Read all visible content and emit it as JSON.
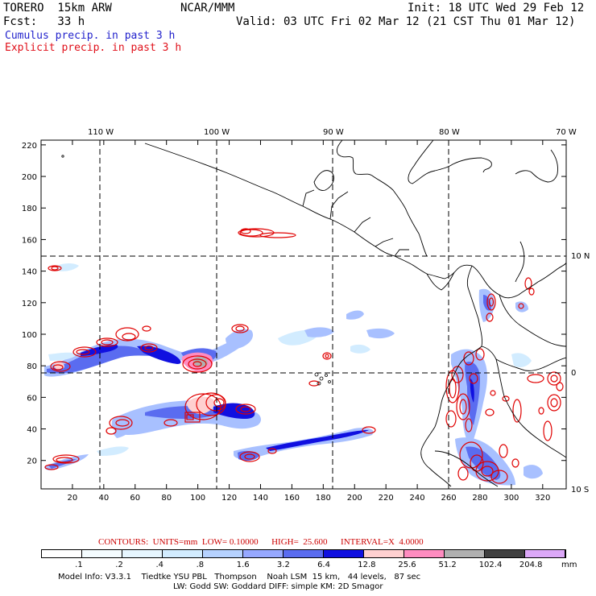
{
  "header": {
    "model": "TORERO  15km ARW",
    "org": "NCAR/MMM",
    "init": "Init: 18 UTC Wed 29 Feb 12",
    "fcst": "Fcst:   33 h",
    "valid": "Valid: 03 UTC Fri 02 Mar 12 (21 CST Thu 01 Mar 12)",
    "legend_cumulus": "Cumulus precip. in past 3 h",
    "legend_explicit": "Explicit precip. in past 3 h"
  },
  "map": {
    "lon_labels": [
      "110 W",
      "100 W",
      "90 W",
      "80 W",
      "70 W"
    ],
    "lat_labels": [
      "10 N",
      "0",
      "10 S"
    ],
    "x_ticks": [
      "20",
      "40",
      "60",
      "80",
      "100",
      "120",
      "140",
      "160",
      "180",
      "200",
      "220",
      "240",
      "260",
      "280",
      "300",
      "320"
    ],
    "y_ticks": [
      "20",
      "40",
      "60",
      "80",
      "100",
      "120",
      "140",
      "160",
      "180",
      "200",
      "220"
    ],
    "x_range": [
      0,
      335
    ],
    "y_range": [
      2,
      223
    ],
    "colors": {
      "cumulus_light": "#a8c0ff",
      "cumulus_mid": "#5a6cf0",
      "cumulus_dark": "#1010e0",
      "explicit": "#e00000",
      "coast": "#000000"
    }
  },
  "contours": {
    "label": "CONTOURS:  UNITS=mm  LOW= 0.10000      HIGH=  25.600      INTERVAL=X  4.0000"
  },
  "colorbar": {
    "ticks": [
      ".1",
      ".2",
      ".4",
      ".8",
      "1.6",
      "3.2",
      "6.4",
      "12.8",
      "25.6",
      "51.2",
      "102.4",
      "204.8"
    ],
    "unit": "mm",
    "colors": [
      "#ffffff",
      "#f4fcff",
      "#e6f6ff",
      "#d2ecff",
      "#b6d2ff",
      "#96a8ff",
      "#5a6cf0",
      "#1010e0",
      "#ffd0d0",
      "#ff8cc0",
      "#b0b0b0",
      "#404040",
      "#dca8f8"
    ]
  },
  "footer": {
    "line1": "Model Info: V3.3.1    Tiedtke YSU PBL   Thompson    Noah LSM  15 km,   44 levels,   87 sec",
    "line2": "LW: Godd SW: Goddard DIFF: simple KM: 2D Smagor"
  }
}
